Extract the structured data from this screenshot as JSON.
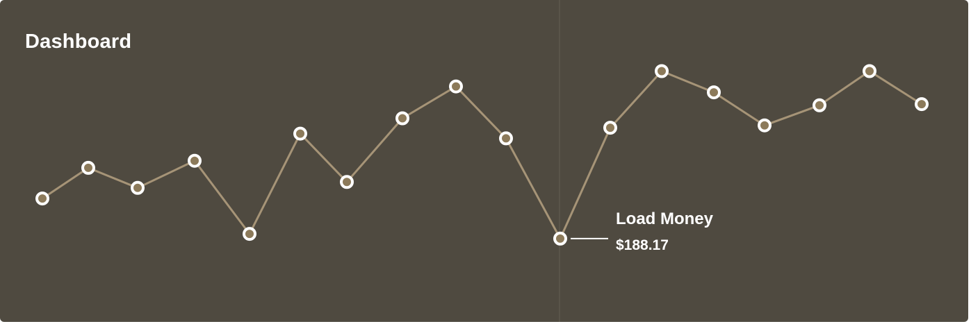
{
  "header": {
    "title": "Dashboard"
  },
  "tooltip": {
    "label": "Load Money",
    "value": "$188.17"
  },
  "colors": {
    "panel_background": "#4f4a40",
    "line": "#a69477",
    "point_fill": "#8c7a5a",
    "point_stroke": "#ffffff",
    "guide_line": "#5d574c",
    "text": "#ffffff"
  },
  "chart_data": {
    "type": "line",
    "highlighted_index": 11,
    "series": [
      {
        "values": [
          47,
          73,
          56,
          79,
          17,
          102,
          61,
          115,
          142,
          98,
          13,
          107,
          155,
          137,
          109,
          126,
          155,
          127
        ]
      }
    ]
  }
}
